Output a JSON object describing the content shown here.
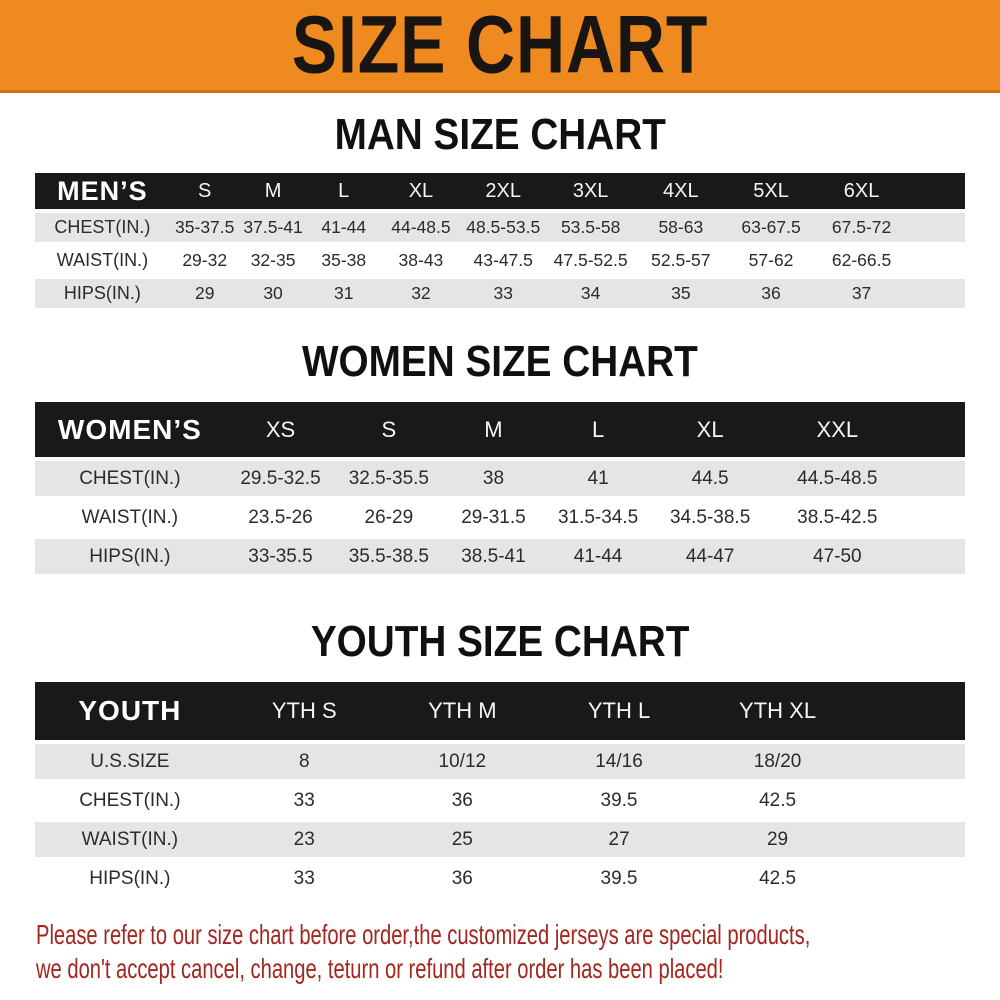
{
  "banner": {
    "title": "SIZE CHART"
  },
  "colors": {
    "banner_orange": "#EE8A1F",
    "table_header_black": "#191919",
    "row_gray": "#E5E5E5",
    "footer_red": "#A3261F",
    "heading_black": "#101010"
  },
  "chart_data": [
    {
      "type": "table",
      "title": "MAN SIZE CHART",
      "corner_label": "MEN’S",
      "columns": [
        "S",
        "M",
        "L",
        "XL",
        "2XL",
        "3XL",
        "4XL",
        "5XL",
        "6XL"
      ],
      "rows": [
        {
          "label": "CHEST(IN.)",
          "values": [
            "35-37.5",
            "37.5-41",
            "41-44",
            "44-48.5",
            "48.5-53.5",
            "53.5-58",
            "58-63",
            "63-67.5",
            "67.5-72"
          ]
        },
        {
          "label": "WAIST(IN.)",
          "values": [
            "29-32",
            "32-35",
            "35-38",
            "38-43",
            "43-47.5",
            "47.5-52.5",
            "52.5-57",
            "57-62",
            "62-66.5"
          ]
        },
        {
          "label": "HIPS(IN.)",
          "values": [
            "29",
            "30",
            "31",
            "32",
            "33",
            "34",
            "35",
            "36",
            "37"
          ]
        }
      ]
    },
    {
      "type": "table",
      "title": "WOMEN SIZE CHART",
      "corner_label": "WOMEN’S",
      "columns": [
        "XS",
        "S",
        "M",
        "L",
        "XL",
        "XXL"
      ],
      "rows": [
        {
          "label": "CHEST(IN.)",
          "values": [
            "29.5-32.5",
            "32.5-35.5",
            "38",
            "41",
            "44.5",
            "44.5-48.5"
          ]
        },
        {
          "label": "WAIST(IN.)",
          "values": [
            "23.5-26",
            "26-29",
            "29-31.5",
            "31.5-34.5",
            "34.5-38.5",
            "38.5-42.5"
          ]
        },
        {
          "label": "HIPS(IN.)",
          "values": [
            "33-35.5",
            "35.5-38.5",
            "38.5-41",
            "41-44",
            "44-47",
            "47-50"
          ]
        }
      ]
    },
    {
      "type": "table",
      "title": "YOUTH SIZE CHART",
      "corner_label": "YOUTH",
      "columns": [
        "YTH S",
        "YTH M",
        "YTH L",
        "YTH XL"
      ],
      "rows": [
        {
          "label": "U.S.SIZE",
          "values": [
            "8",
            "10/12",
            "14/16",
            "18/20"
          ]
        },
        {
          "label": "CHEST(IN.)",
          "values": [
            "33",
            "36",
            "39.5",
            "42.5"
          ]
        },
        {
          "label": "WAIST(IN.)",
          "values": [
            "23",
            "25",
            "27",
            "29"
          ]
        },
        {
          "label": "HIPS(IN.)",
          "values": [
            "33",
            "36",
            "39.5",
            "42.5"
          ]
        }
      ]
    }
  ],
  "footer": {
    "lines": [
      "Please refer to our size chart before order,the customized jerseys are special products,",
      "we don't accept cancel, change, teturn or refund after order has been placed!"
    ]
  }
}
